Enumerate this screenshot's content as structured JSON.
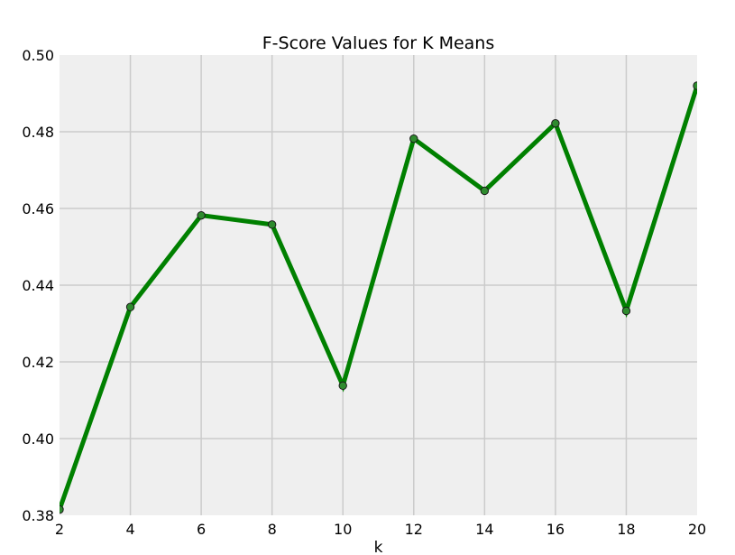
{
  "chart_data": {
    "type": "line",
    "title": "F-Score Values for K Means",
    "xlabel": "k",
    "ylabel": "",
    "xlim": [
      2,
      20
    ],
    "ylim": [
      0.38,
      0.5
    ],
    "xticks": [
      "2",
      "4",
      "6",
      "8",
      "10",
      "12",
      "14",
      "16",
      "18",
      "20"
    ],
    "yticks": [
      "0.38",
      "0.40",
      "0.42",
      "0.44",
      "0.46",
      "0.48",
      "0.50"
    ],
    "grid": true,
    "legend": "none",
    "series": [
      {
        "color": "#008000",
        "marker_color": "#2e8b2e",
        "x": [
          2,
          4,
          6,
          8,
          10,
          12,
          14,
          16,
          18,
          20
        ],
        "y": [
          0.3815,
          0.4343,
          0.4582,
          0.4558,
          0.4138,
          0.4782,
          0.4646,
          0.4822,
          0.4333,
          0.492
        ]
      }
    ],
    "colors": {
      "plot_background": "#efefef",
      "grid": "#cbcbcb"
    }
  }
}
